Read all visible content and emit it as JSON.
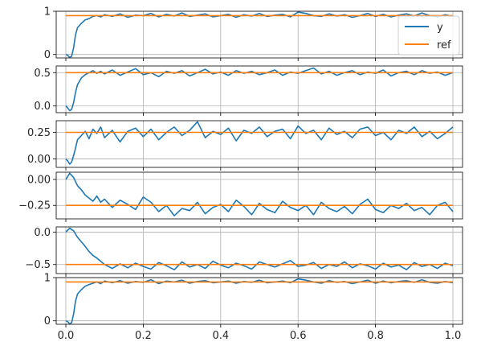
{
  "figure": {
    "background": "#ffffff",
    "grid": true,
    "colors": {
      "y": "#1f77b4",
      "ref": "#ff7f0e",
      "grid": "#b0b0b0",
      "axis": "#000000"
    }
  },
  "legend": {
    "placement": "top-right",
    "panel": 0,
    "entries": [
      {
        "label": "y",
        "color": "#1f77b4"
      },
      {
        "label": "ref",
        "color": "#ff7f0e"
      }
    ]
  },
  "chart_data": [
    {
      "type": "line",
      "xlim": [
        0,
        1
      ],
      "ylim": [
        -0.08,
        1.0
      ],
      "yticks": [
        "0",
        "1"
      ],
      "ytick_values": [
        0,
        1
      ],
      "xticks": [
        "0.0",
        "0.2",
        "0.4",
        "0.6",
        "0.8",
        "1.0"
      ],
      "xtick_values": [
        0,
        0.2,
        0.4,
        0.6,
        0.8,
        1.0
      ],
      "show_xtick_labels": false,
      "series": [
        {
          "name": "y",
          "color": "#1f77b4",
          "x": [
            0,
            0.005,
            0.01,
            0.015,
            0.02,
            0.025,
            0.03,
            0.04,
            0.05,
            0.06,
            0.07,
            0.08,
            0.09,
            0.1,
            0.12,
            0.14,
            0.16,
            0.18,
            0.2,
            0.22,
            0.24,
            0.26,
            0.28,
            0.3,
            0.32,
            0.34,
            0.36,
            0.38,
            0.4,
            0.42,
            0.44,
            0.46,
            0.48,
            0.5,
            0.52,
            0.54,
            0.56,
            0.58,
            0.6,
            0.62,
            0.64,
            0.66,
            0.68,
            0.7,
            0.72,
            0.74,
            0.76,
            0.78,
            0.8,
            0.82,
            0.84,
            0.86,
            0.88,
            0.9,
            0.92,
            0.94,
            0.96,
            0.98,
            1.0
          ],
          "y": [
            0,
            -0.02,
            -0.07,
            -0.04,
            0.15,
            0.45,
            0.62,
            0.72,
            0.8,
            0.83,
            0.88,
            0.9,
            0.87,
            0.92,
            0.88,
            0.94,
            0.86,
            0.91,
            0.9,
            0.95,
            0.87,
            0.93,
            0.89,
            0.96,
            0.88,
            0.91,
            0.94,
            0.87,
            0.9,
            0.93,
            0.86,
            0.92,
            0.89,
            0.95,
            0.88,
            0.91,
            0.93,
            0.87,
            0.98,
            0.95,
            0.9,
            0.88,
            0.94,
            0.89,
            0.92,
            0.86,
            0.9,
            0.95,
            0.88,
            0.93,
            0.87,
            0.91,
            0.94,
            0.89,
            0.96,
            0.9,
            0.87,
            0.92,
            0.88
          ]
        },
        {
          "name": "ref",
          "color": "#ff7f0e",
          "x": [
            0,
            1
          ],
          "y": [
            0.9,
            0.9
          ]
        }
      ]
    },
    {
      "type": "line",
      "xlim": [
        0,
        1
      ],
      "ylim": [
        -0.1,
        0.6
      ],
      "yticks": [
        "0.0",
        "0.5"
      ],
      "ytick_values": [
        0,
        0.5
      ],
      "xticks": [
        "0.0",
        "0.2",
        "0.4",
        "0.6",
        "0.8",
        "1.0"
      ],
      "xtick_values": [
        0,
        0.2,
        0.4,
        0.6,
        0.8,
        1.0
      ],
      "show_xtick_labels": false,
      "series": [
        {
          "name": "y",
          "color": "#1f77b4",
          "x": [
            0,
            0.005,
            0.01,
            0.015,
            0.02,
            0.025,
            0.03,
            0.04,
            0.05,
            0.06,
            0.07,
            0.08,
            0.09,
            0.1,
            0.12,
            0.14,
            0.16,
            0.18,
            0.2,
            0.22,
            0.24,
            0.26,
            0.28,
            0.3,
            0.32,
            0.34,
            0.36,
            0.38,
            0.4,
            0.42,
            0.44,
            0.46,
            0.48,
            0.5,
            0.52,
            0.54,
            0.56,
            0.58,
            0.6,
            0.62,
            0.64,
            0.66,
            0.68,
            0.7,
            0.72,
            0.74,
            0.76,
            0.78,
            0.8,
            0.82,
            0.84,
            0.86,
            0.88,
            0.9,
            0.92,
            0.94,
            0.96,
            0.98,
            1.0
          ],
          "y": [
            0,
            -0.03,
            -0.07,
            -0.05,
            0.05,
            0.2,
            0.32,
            0.42,
            0.47,
            0.5,
            0.53,
            0.49,
            0.52,
            0.48,
            0.54,
            0.46,
            0.51,
            0.56,
            0.47,
            0.5,
            0.44,
            0.52,
            0.49,
            0.53,
            0.45,
            0.5,
            0.55,
            0.48,
            0.51,
            0.46,
            0.53,
            0.49,
            0.52,
            0.47,
            0.5,
            0.54,
            0.46,
            0.51,
            0.49,
            0.53,
            0.57,
            0.48,
            0.52,
            0.46,
            0.5,
            0.53,
            0.47,
            0.51,
            0.49,
            0.54,
            0.45,
            0.5,
            0.52,
            0.47,
            0.53,
            0.49,
            0.51,
            0.46,
            0.5
          ]
        },
        {
          "name": "ref",
          "color": "#ff7f0e",
          "x": [
            0,
            1
          ],
          "y": [
            0.5,
            0.5
          ]
        }
      ]
    },
    {
      "type": "line",
      "xlim": [
        0,
        1
      ],
      "ylim": [
        -0.08,
        0.36
      ],
      "yticks": [
        "0.00",
        "0.25"
      ],
      "ytick_values": [
        0,
        0.25
      ],
      "xticks": [
        "0.0",
        "0.2",
        "0.4",
        "0.6",
        "0.8",
        "1.0"
      ],
      "xtick_values": [
        0,
        0.2,
        0.4,
        0.6,
        0.8,
        1.0
      ],
      "show_xtick_labels": false,
      "series": [
        {
          "name": "y",
          "color": "#1f77b4",
          "x": [
            0,
            0.005,
            0.01,
            0.015,
            0.02,
            0.025,
            0.03,
            0.04,
            0.05,
            0.06,
            0.07,
            0.08,
            0.09,
            0.1,
            0.12,
            0.14,
            0.16,
            0.18,
            0.2,
            0.22,
            0.24,
            0.26,
            0.28,
            0.3,
            0.32,
            0.34,
            0.36,
            0.38,
            0.4,
            0.42,
            0.44,
            0.46,
            0.48,
            0.5,
            0.52,
            0.54,
            0.56,
            0.58,
            0.6,
            0.62,
            0.64,
            0.66,
            0.68,
            0.7,
            0.72,
            0.74,
            0.76,
            0.78,
            0.8,
            0.82,
            0.84,
            0.86,
            0.88,
            0.9,
            0.92,
            0.94,
            0.96,
            0.98,
            1.0
          ],
          "y": [
            0,
            -0.02,
            -0.05,
            -0.03,
            0.03,
            0.1,
            0.18,
            0.22,
            0.26,
            0.19,
            0.28,
            0.24,
            0.3,
            0.2,
            0.27,
            0.16,
            0.26,
            0.29,
            0.21,
            0.28,
            0.18,
            0.25,
            0.3,
            0.22,
            0.27,
            0.35,
            0.2,
            0.26,
            0.23,
            0.29,
            0.17,
            0.27,
            0.24,
            0.3,
            0.21,
            0.26,
            0.28,
            0.19,
            0.31,
            0.24,
            0.27,
            0.18,
            0.29,
            0.23,
            0.26,
            0.2,
            0.28,
            0.3,
            0.22,
            0.25,
            0.18,
            0.27,
            0.24,
            0.3,
            0.21,
            0.26,
            0.19,
            0.24,
            0.3
          ]
        },
        {
          "name": "ref",
          "color": "#ff7f0e",
          "x": [
            0,
            1
          ],
          "y": [
            0.25,
            0.25
          ]
        }
      ]
    },
    {
      "type": "line",
      "xlim": [
        0,
        1
      ],
      "ylim": [
        -0.38,
        0.07
      ],
      "yticks": [
        "0.00",
        "−0.25"
      ],
      "ytick_values": [
        0,
        -0.25
      ],
      "xticks": [
        "0.0",
        "0.2",
        "0.4",
        "0.6",
        "0.8",
        "1.0"
      ],
      "xtick_values": [
        0,
        0.2,
        0.4,
        0.6,
        0.8,
        1.0
      ],
      "show_xtick_labels": false,
      "series": [
        {
          "name": "y",
          "color": "#1f77b4",
          "x": [
            0,
            0.005,
            0.01,
            0.015,
            0.02,
            0.025,
            0.03,
            0.04,
            0.05,
            0.06,
            0.07,
            0.08,
            0.09,
            0.1,
            0.12,
            0.14,
            0.16,
            0.18,
            0.2,
            0.22,
            0.24,
            0.26,
            0.28,
            0.3,
            0.32,
            0.34,
            0.36,
            0.38,
            0.4,
            0.42,
            0.44,
            0.46,
            0.48,
            0.5,
            0.52,
            0.54,
            0.56,
            0.58,
            0.6,
            0.62,
            0.64,
            0.66,
            0.68,
            0.7,
            0.72,
            0.74,
            0.76,
            0.78,
            0.8,
            0.82,
            0.84,
            0.86,
            0.88,
            0.9,
            0.92,
            0.94,
            0.96,
            0.98,
            1.0
          ],
          "y": [
            0,
            0.03,
            0.06,
            0.04,
            0.02,
            -0.02,
            -0.06,
            -0.1,
            -0.15,
            -0.18,
            -0.21,
            -0.16,
            -0.22,
            -0.19,
            -0.27,
            -0.2,
            -0.24,
            -0.29,
            -0.17,
            -0.22,
            -0.31,
            -0.25,
            -0.35,
            -0.28,
            -0.3,
            -0.22,
            -0.33,
            -0.27,
            -0.24,
            -0.31,
            -0.2,
            -0.26,
            -0.34,
            -0.23,
            -0.29,
            -0.32,
            -0.21,
            -0.27,
            -0.3,
            -0.25,
            -0.34,
            -0.22,
            -0.28,
            -0.31,
            -0.26,
            -0.33,
            -0.24,
            -0.19,
            -0.29,
            -0.32,
            -0.25,
            -0.28,
            -0.23,
            -0.3,
            -0.27,
            -0.34,
            -0.25,
            -0.22,
            -0.31
          ]
        },
        {
          "name": "ref",
          "color": "#ff7f0e",
          "x": [
            0,
            1
          ],
          "y": [
            -0.25,
            -0.25
          ]
        }
      ]
    },
    {
      "type": "line",
      "xlim": [
        0,
        1
      ],
      "ylim": [
        -0.64,
        0.08
      ],
      "yticks": [
        "0.0",
        "−0.5"
      ],
      "ytick_values": [
        0,
        -0.5
      ],
      "xticks": [
        "0.0",
        "0.2",
        "0.4",
        "0.6",
        "0.8",
        "1.0"
      ],
      "xtick_values": [
        0,
        0.2,
        0.4,
        0.6,
        0.8,
        1.0
      ],
      "show_xtick_labels": false,
      "series": [
        {
          "name": "y",
          "color": "#1f77b4",
          "x": [
            0,
            0.005,
            0.01,
            0.015,
            0.02,
            0.025,
            0.03,
            0.04,
            0.05,
            0.06,
            0.07,
            0.08,
            0.09,
            0.1,
            0.12,
            0.14,
            0.16,
            0.18,
            0.2,
            0.22,
            0.24,
            0.26,
            0.28,
            0.3,
            0.32,
            0.34,
            0.36,
            0.38,
            0.4,
            0.42,
            0.44,
            0.46,
            0.48,
            0.5,
            0.52,
            0.54,
            0.56,
            0.58,
            0.6,
            0.62,
            0.64,
            0.66,
            0.68,
            0.7,
            0.72,
            0.74,
            0.76,
            0.78,
            0.8,
            0.82,
            0.84,
            0.86,
            0.88,
            0.9,
            0.92,
            0.94,
            0.96,
            0.98,
            1.0
          ],
          "y": [
            0,
            0.03,
            0.06,
            0.04,
            0.02,
            -0.03,
            -0.08,
            -0.15,
            -0.22,
            -0.3,
            -0.36,
            -0.4,
            -0.45,
            -0.5,
            -0.56,
            -0.49,
            -0.55,
            -0.48,
            -0.53,
            -0.57,
            -0.47,
            -0.52,
            -0.58,
            -0.46,
            -0.54,
            -0.5,
            -0.56,
            -0.45,
            -0.51,
            -0.55,
            -0.48,
            -0.52,
            -0.57,
            -0.46,
            -0.5,
            -0.54,
            -0.49,
            -0.44,
            -0.53,
            -0.51,
            -0.47,
            -0.56,
            -0.5,
            -0.53,
            -0.46,
            -0.55,
            -0.49,
            -0.52,
            -0.57,
            -0.48,
            -0.54,
            -0.51,
            -0.58,
            -0.47,
            -0.53,
            -0.5,
            -0.56,
            -0.48,
            -0.52
          ]
        },
        {
          "name": "ref",
          "color": "#ff7f0e",
          "x": [
            0,
            1
          ],
          "y": [
            -0.5,
            -0.5
          ]
        }
      ]
    },
    {
      "type": "line",
      "xlim": [
        0,
        1
      ],
      "ylim": [
        -0.08,
        1.0
      ],
      "yticks": [
        "0",
        "1"
      ],
      "ytick_values": [
        0,
        1
      ],
      "xticks": [
        "0.0",
        "0.2",
        "0.4",
        "0.6",
        "0.8",
        "1.0"
      ],
      "xtick_values": [
        0,
        0.2,
        0.4,
        0.6,
        0.8,
        1.0
      ],
      "show_xtick_labels": true,
      "series": [
        {
          "name": "y",
          "color": "#1f77b4",
          "x": [
            0,
            0.005,
            0.01,
            0.015,
            0.02,
            0.025,
            0.03,
            0.04,
            0.05,
            0.06,
            0.07,
            0.08,
            0.09,
            0.1,
            0.12,
            0.14,
            0.16,
            0.18,
            0.2,
            0.22,
            0.24,
            0.26,
            0.28,
            0.3,
            0.32,
            0.34,
            0.36,
            0.38,
            0.4,
            0.42,
            0.44,
            0.46,
            0.48,
            0.5,
            0.52,
            0.54,
            0.56,
            0.58,
            0.6,
            0.62,
            0.64,
            0.66,
            0.68,
            0.7,
            0.72,
            0.74,
            0.76,
            0.78,
            0.8,
            0.82,
            0.84,
            0.86,
            0.88,
            0.9,
            0.92,
            0.94,
            0.96,
            0.98,
            1.0
          ],
          "y": [
            0,
            -0.02,
            -0.07,
            -0.04,
            0.15,
            0.45,
            0.62,
            0.72,
            0.8,
            0.84,
            0.87,
            0.9,
            0.86,
            0.92,
            0.88,
            0.93,
            0.87,
            0.91,
            0.89,
            0.95,
            0.86,
            0.92,
            0.9,
            0.94,
            0.87,
            0.91,
            0.93,
            0.88,
            0.9,
            0.92,
            0.87,
            0.91,
            0.89,
            0.94,
            0.88,
            0.9,
            0.92,
            0.88,
            0.97,
            0.94,
            0.9,
            0.87,
            0.93,
            0.89,
            0.91,
            0.86,
            0.9,
            0.94,
            0.87,
            0.92,
            0.88,
            0.91,
            0.93,
            0.89,
            0.95,
            0.89,
            0.87,
            0.91,
            0.88
          ]
        },
        {
          "name": "ref",
          "color": "#ff7f0e",
          "x": [
            0,
            1
          ],
          "y": [
            0.9,
            0.9
          ]
        }
      ]
    }
  ]
}
